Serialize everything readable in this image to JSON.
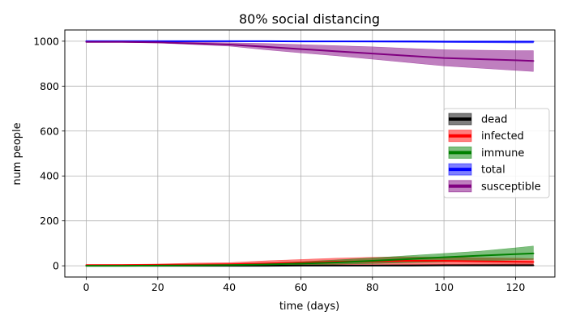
{
  "chart_data": {
    "type": "line",
    "title": "80% social distancing",
    "xlabel": "time (days)",
    "ylabel": "num people",
    "xlim": [
      -6,
      131
    ],
    "ylim": [
      -50,
      1050
    ],
    "grid": true,
    "legend": {
      "placement": "center-right"
    },
    "xticks": [
      0,
      20,
      40,
      60,
      80,
      100,
      120
    ],
    "yticks": [
      0,
      200,
      400,
      600,
      800,
      1000
    ],
    "x": [
      0,
      10,
      20,
      30,
      40,
      50,
      60,
      70,
      80,
      90,
      100,
      110,
      120,
      125
    ],
    "series": [
      {
        "name": "dead",
        "color": "#000000",
        "values": [
          0,
          0,
          0,
          0,
          0,
          0,
          1,
          1,
          1,
          1,
          2,
          2,
          2,
          2
        ],
        "lower": [
          0,
          0,
          0,
          0,
          0,
          0,
          0,
          0,
          0,
          0,
          0,
          0,
          0,
          0
        ],
        "upper": [
          0,
          0,
          1,
          1,
          2,
          2,
          3,
          4,
          4,
          5,
          6,
          7,
          8,
          8
        ]
      },
      {
        "name": "infected",
        "color": "#ff0000",
        "values": [
          3,
          3,
          4,
          5,
          7,
          10,
          14,
          18,
          20,
          22,
          22,
          20,
          18,
          17
        ],
        "lower": [
          1,
          1,
          1,
          1,
          2,
          3,
          4,
          5,
          6,
          6,
          6,
          5,
          5,
          5
        ],
        "upper": [
          5,
          6,
          8,
          12,
          14,
          22,
          28,
          34,
          38,
          40,
          38,
          36,
          34,
          32
        ]
      },
      {
        "name": "immune",
        "color": "#008000",
        "values": [
          0,
          0,
          1,
          2,
          3,
          6,
          10,
          15,
          22,
          30,
          38,
          45,
          52,
          55
        ],
        "lower": [
          0,
          0,
          0,
          0,
          1,
          2,
          4,
          7,
          10,
          14,
          18,
          22,
          26,
          28
        ],
        "upper": [
          0,
          1,
          2,
          4,
          6,
          12,
          18,
          26,
          35,
          45,
          55,
          65,
          80,
          88
        ]
      },
      {
        "name": "total",
        "color": "#0000ff",
        "values": [
          1000,
          1000,
          1000,
          1000,
          1000,
          1000,
          999,
          999,
          999,
          999,
          998,
          998,
          998,
          998
        ],
        "lower": [
          1000,
          1000,
          1000,
          1000,
          1000,
          1000,
          997,
          997,
          996,
          995,
          994,
          993,
          992,
          992
        ],
        "upper": [
          1000,
          1000,
          1000,
          1000,
          1000,
          1000,
          1000,
          1000,
          1000,
          1000,
          1000,
          1000,
          1000,
          1000
        ]
      },
      {
        "name": "susceptible",
        "color": "#800080",
        "values": [
          997,
          997,
          995,
          990,
          985,
          975,
          965,
          955,
          945,
          935,
          925,
          920,
          915,
          912
        ],
        "lower": [
          995,
          995,
          992,
          985,
          978,
          962,
          948,
          935,
          920,
          905,
          890,
          880,
          870,
          865
        ],
        "upper": [
          999,
          999,
          998,
          996,
          993,
          990,
          985,
          980,
          975,
          968,
          962,
          960,
          958,
          958
        ]
      }
    ]
  }
}
